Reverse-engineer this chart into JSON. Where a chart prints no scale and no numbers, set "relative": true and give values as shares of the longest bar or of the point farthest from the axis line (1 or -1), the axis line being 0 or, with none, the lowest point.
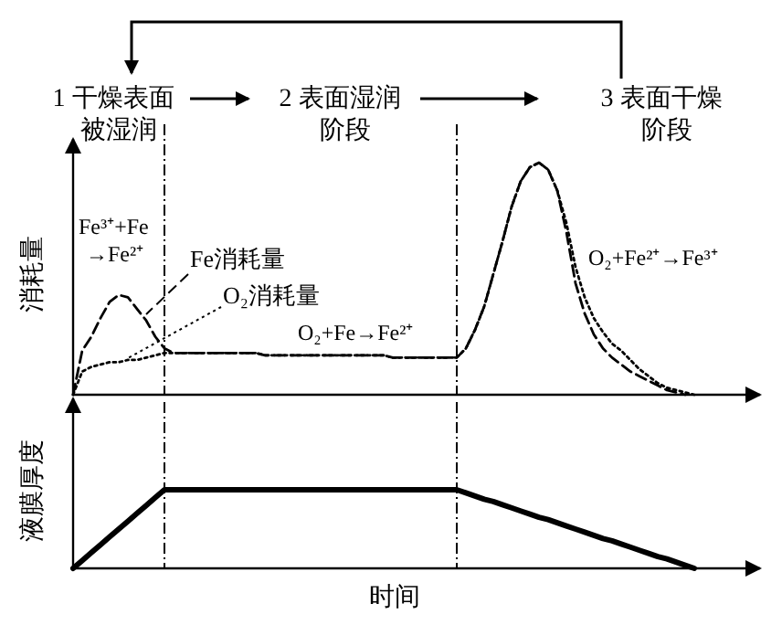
{
  "chart_data": [
    {
      "type": "line",
      "relative": true,
      "ylabel": "消耗量",
      "tick_labels": false,
      "marker": "none",
      "categories": [
        null,
        null,
        null,
        null,
        null,
        null,
        null,
        null,
        null,
        null,
        null,
        null,
        null,
        null,
        null,
        null,
        null,
        null,
        null,
        null,
        null,
        null,
        null,
        null,
        null,
        null,
        null,
        null,
        null,
        null,
        null,
        null,
        null,
        null,
        null,
        null,
        null,
        null,
        null,
        null,
        null,
        null,
        null,
        null,
        null,
        null,
        null,
        null,
        null,
        null,
        null,
        null,
        null,
        null,
        null,
        null,
        null,
        null,
        null,
        null,
        null,
        null,
        null,
        null,
        null,
        null,
        null,
        null,
        null
      ],
      "annotations": [
        "1 干燥表面被湿润",
        "2 表面湿润阶段",
        "3 表面干燥阶段",
        "Fe³⁺+Fe→Fe²⁺",
        "O₂+Fe→Fe²⁺",
        "O₂+Fe²⁺→Fe³⁺"
      ],
      "series": [
        {
          "name": "Fe消耗量",
          "color": "#000000",
          "line_style": "dashed",
          "values": [
            0,
            0.19,
            0.25,
            0.33,
            0.4,
            0.43,
            0.42,
            0.37,
            0.32,
            0.25,
            0.2,
            0.18,
            0.18,
            0.18,
            0.18,
            0.18,
            0.18,
            0.18,
            0.18,
            0.18,
            0.18,
            0.17,
            0.17,
            0.17,
            0.17,
            0.17,
            0.17,
            0.17,
            0.17,
            0.17,
            0.17,
            0.17,
            0.17,
            0.17,
            0.17,
            0.16,
            0.16,
            0.16,
            0.16,
            0.16,
            0.16,
            0.16,
            0.16,
            0.2,
            0.28,
            0.38,
            0.52,
            0.66,
            0.81,
            0.92,
            0.98,
            1,
            0.97,
            0.88,
            0.7,
            0.48,
            0.35,
            0.26,
            0.2,
            0.16,
            0.13,
            0.1,
            0.08,
            0.06,
            0.04,
            0.02,
            0.01,
            0,
            null
          ]
        },
        {
          "name": "O₂消耗量",
          "color": "#000000",
          "line_style": "dotted",
          "values": [
            0,
            0.1,
            0.12,
            0.13,
            0.14,
            0.14,
            0.15,
            0.15,
            0.16,
            0.17,
            0.18,
            0.18,
            0.18,
            0.18,
            0.18,
            0.18,
            0.18,
            0.18,
            0.18,
            0.18,
            0.18,
            0.17,
            0.17,
            0.17,
            0.17,
            0.17,
            0.17,
            0.17,
            0.17,
            0.17,
            0.17,
            0.17,
            0.17,
            0.17,
            0.17,
            0.16,
            0.16,
            0.16,
            0.16,
            0.16,
            0.16,
            0.16,
            0.16,
            0.2,
            0.28,
            0.38,
            0.52,
            0.66,
            0.81,
            0.92,
            0.98,
            1,
            0.97,
            0.88,
            0.74,
            0.55,
            0.42,
            0.33,
            0.27,
            0.22,
            0.19,
            0.15,
            0.11,
            0.08,
            0.05,
            0.03,
            0.02,
            0.01,
            0
          ]
        }
      ]
    },
    {
      "type": "line",
      "relative": true,
      "ylabel": "液膜厚度",
      "xlabel": "时间",
      "tick_labels": false,
      "marker": "none",
      "categories": [
        null,
        null,
        null,
        null,
        null,
        null,
        null,
        null,
        null,
        null,
        null,
        null,
        null,
        null,
        null,
        null,
        null,
        null,
        null,
        null,
        null,
        null,
        null,
        null,
        null,
        null,
        null,
        null,
        null,
        null,
        null,
        null,
        null,
        null,
        null,
        null,
        null,
        null,
        null,
        null,
        null,
        null,
        null,
        null,
        null,
        null,
        null,
        null,
        null,
        null,
        null,
        null,
        null,
        null,
        null,
        null,
        null,
        null,
        null,
        null,
        null,
        null,
        null,
        null,
        null,
        null,
        null,
        null,
        null
      ],
      "series": [
        {
          "color": "#000000",
          "line_style": "solid",
          "values": [
            0,
            0.1,
            0.2,
            0.3,
            0.4,
            0.5,
            0.6,
            0.7,
            0.8,
            0.9,
            1,
            1,
            1,
            1,
            1,
            1,
            1,
            1,
            1,
            1,
            1,
            1,
            1,
            1,
            1,
            1,
            1,
            1,
            1,
            1,
            1,
            1,
            1,
            1,
            1,
            1,
            1,
            1,
            1,
            1,
            1,
            1,
            1,
            0.96,
            0.92,
            0.88,
            0.85,
            0.81,
            0.77,
            0.73,
            0.69,
            0.65,
            0.62,
            0.58,
            0.54,
            0.5,
            0.46,
            0.42,
            0.38,
            0.35,
            0.31,
            0.27,
            0.23,
            0.19,
            0.15,
            0.12,
            0.08,
            0.04,
            0
          ]
        }
      ]
    }
  ]
}
